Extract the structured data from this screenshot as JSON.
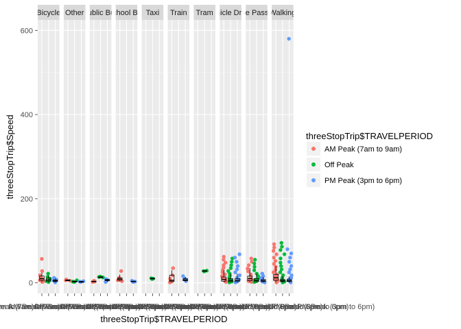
{
  "chart_data": {
    "type": "scatter",
    "title": "",
    "xlabel": "threeStopTrip$TRAVELPERIOD",
    "ylabel": "threeStopTrip$Speed",
    "ylim": [
      -25,
      625
    ],
    "yticks": [
      0,
      200,
      400,
      600
    ],
    "grid": true,
    "legend_position": "right",
    "legend_title": "threeStopTrip$TRAVELPERIOD",
    "x_tick_text": "AM Peak (7am to 9am)Off PeakPM Peak (3pm to 6pm)",
    "series": [
      {
        "name": "AM Peak (7am to 9am)",
        "color": "#F8766D"
      },
      {
        "name": "Off Peak",
        "color": "#00BA38"
      },
      {
        "name": "PM Peak (3pm to 6pm)",
        "color": "#619CFF"
      }
    ],
    "facets": [
      {
        "label": "Bicycle",
        "groups": [
          {
            "series": 0,
            "points": [
              57,
              28,
              18,
              14,
              10,
              8,
              6,
              4,
              2
            ],
            "box": [
              2,
              6,
              10,
              16,
              24
            ]
          },
          {
            "series": 1,
            "points": [
              22,
              14,
              10,
              6,
              4,
              2
            ],
            "box": [
              1,
              4,
              7,
              11,
              18
            ]
          },
          {
            "series": 2,
            "points": [
              12,
              8,
              5,
              3,
              1
            ],
            "box": [
              1,
              3,
              5,
              7,
              10
            ]
          }
        ]
      },
      {
        "label": "Other",
        "groups": [
          {
            "series": 0,
            "points": [
              8,
              6,
              5
            ],
            "box": [
              4,
              5,
              6,
              7,
              8
            ]
          },
          {
            "series": 1,
            "points": [
              6,
              3,
              2
            ],
            "box": [
              2,
              2,
              3,
              4,
              5
            ]
          },
          {
            "series": 2,
            "points": [
              4,
              3,
              2
            ],
            "box": [
              2,
              3,
              3,
              3,
              4
            ]
          }
        ]
      },
      {
        "label": "Public Bus",
        "groups": [
          {
            "series": 0,
            "points": [
              5,
              3,
              2
            ],
            "box": [
              2,
              3,
              3,
              4,
              5
            ]
          },
          {
            "series": 1,
            "points": [
              14,
              13,
              15
            ],
            "box": [
              12,
              13,
              14,
              14,
              15
            ]
          },
          {
            "series": 2,
            "points": [
              9,
              7,
              5,
              2
            ],
            "box": [
              2,
              5,
              7,
              8,
              9
            ]
          }
        ]
      },
      {
        "label": "School Bus",
        "groups": [
          {
            "series": 0,
            "points": [
              28,
              12,
              9,
              6,
              4
            ],
            "box": [
              3,
              6,
              9,
              12,
              20
            ]
          },
          {
            "series": 1,
            "points": [],
            "box": null
          },
          {
            "series": 2,
            "points": [
              5,
              3,
              2
            ],
            "box": [
              2,
              3,
              3,
              4,
              5
            ]
          }
        ]
      },
      {
        "label": "Taxi",
        "groups": [
          {
            "series": 0,
            "points": [],
            "box": null
          },
          {
            "series": 1,
            "points": [
              11,
              10,
              9
            ],
            "box": [
              9,
              10,
              10,
              11,
              11
            ]
          },
          {
            "series": 2,
            "points": [],
            "box": null
          }
        ]
      },
      {
        "label": "Train",
        "groups": [
          {
            "series": 0,
            "points": [
              35,
              18,
              10,
              5,
              3,
              1
            ],
            "box": [
              1,
              3,
              6,
              18,
              30
            ]
          },
          {
            "series": 1,
            "points": [],
            "box": null
          },
          {
            "series": 2,
            "points": [
              16,
              10,
              7,
              4
            ],
            "box": [
              3,
              5,
              7,
              10,
              14
            ]
          }
        ]
      },
      {
        "label": "Tram",
        "groups": [
          {
            "series": 0,
            "points": [],
            "box": null
          },
          {
            "series": 1,
            "points": [
              29,
              28,
              27
            ],
            "box": [
              27,
              28,
              28,
              29,
              29
            ]
          },
          {
            "series": 2,
            "points": [],
            "box": null
          }
        ]
      },
      {
        "label": "Vehicle Driver",
        "groups": [
          {
            "series": 0,
            "points": [
              62,
              55,
              48,
              42,
              36,
              30,
              25,
              20,
              16,
              12,
              9,
              6,
              4,
              2
            ],
            "box": [
              1,
              4,
              8,
              14,
              30
            ]
          },
          {
            "series": 1,
            "points": [
              58,
              50,
              42,
              35,
              28,
              22,
              17,
              12,
              8,
              5,
              3,
              1
            ],
            "box": [
              1,
              3,
              6,
              10,
              22
            ]
          },
          {
            "series": 2,
            "points": [
              68,
              60,
              50,
              40,
              32,
              25,
              18,
              12,
              8,
              5,
              3,
              1
            ],
            "box": [
              1,
              3,
              6,
              10,
              22
            ]
          }
        ]
      },
      {
        "label": "Vehicle Passenger",
        "groups": [
          {
            "series": 0,
            "points": [
              58,
              50,
              42,
              34,
              27,
              20,
              15,
              10,
              7,
              4,
              2
            ],
            "box": [
              2,
              5,
              10,
              16,
              35
            ]
          },
          {
            "series": 1,
            "points": [
              55,
              46,
              38,
              30,
              22,
              16,
              11,
              7,
              4,
              2
            ],
            "box": [
              1,
              3,
              6,
              10,
              22
            ]
          },
          {
            "series": 2,
            "points": [
              22,
              16,
              12,
              8,
              5,
              3,
              1
            ],
            "box": [
              1,
              3,
              5,
              8,
              14
            ]
          }
        ]
      },
      {
        "label": "Walking",
        "groups": [
          {
            "series": 0,
            "points": [
              92,
              84,
              76,
              68,
              60,
              52,
              45,
              38,
              31,
              25,
              20,
              15,
              11,
              8,
              5,
              3,
              1
            ],
            "box": [
              2,
              6,
              12,
              20,
              40
            ]
          },
          {
            "series": 1,
            "points": [
              95,
              86,
              78,
              68,
              58,
              48,
              40,
              32,
              25,
              18,
              12,
              8,
              5,
              3,
              1
            ],
            "box": [
              1,
              3,
              5,
              8,
              16
            ]
          },
          {
            "series": 2,
            "points": [
              580,
              80,
              70,
              60,
              50,
              40,
              32,
              25,
              18,
              12,
              8,
              5,
              3,
              1
            ],
            "box": [
              1,
              3,
              5,
              8,
              15
            ]
          }
        ]
      }
    ]
  }
}
